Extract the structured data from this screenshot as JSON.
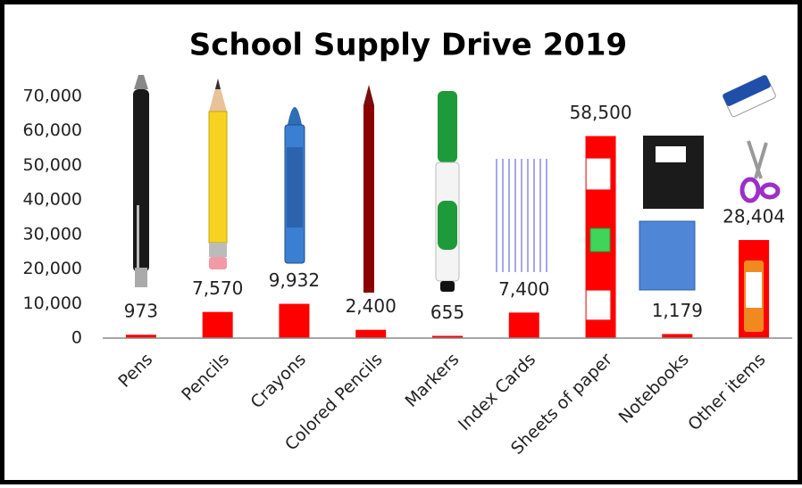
{
  "chart_data": {
    "type": "bar",
    "title": "School Supply Drive 2019",
    "categories": [
      "Pens",
      "Pencils",
      "Crayons",
      "Colored Pencils",
      "Markers",
      "Index Cards",
      "Sheets of paper",
      "Notebooks",
      "Other items"
    ],
    "values": [
      973,
      7570,
      9932,
      2400,
      655,
      7400,
      58500,
      1179,
      28404
    ],
    "value_labels": [
      "973",
      "7,570",
      "9,932",
      "2,400",
      "655",
      "7,400",
      "58,500",
      "1,179",
      "28,404"
    ],
    "color": "#ff0000",
    "ylim": [
      0,
      70000
    ],
    "yticks": [
      0,
      {
        "value": 10000,
        "label": "10,000"
      },
      {
        "value": 20000,
        "label": "20,000"
      },
      {
        "value": 30000,
        "label": "30,000"
      },
      {
        "value": 40000,
        "label": "40,000"
      },
      {
        "value": 50000,
        "label": "50,000"
      },
      {
        "value": 60000,
        "label": "60,000"
      },
      {
        "value": 70000,
        "label": "70,000"
      }
    ],
    "grid": false
  }
}
